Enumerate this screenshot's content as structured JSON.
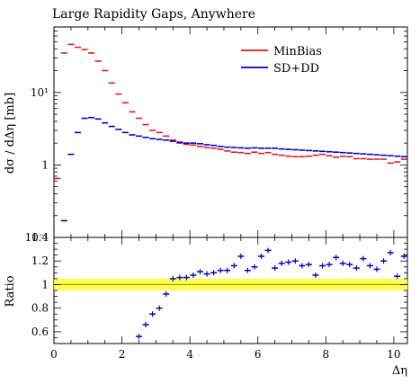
{
  "chart_data": [
    {
      "type": "scatter",
      "panel": "main",
      "title": "Large Rapidity Gaps, Anywhere",
      "xlabel": "",
      "ylabel": "dσ / dΔη [mb]",
      "yscale": "log",
      "ylim": [
        0.1,
        80
      ],
      "xlim": [
        0,
        10.4
      ],
      "yticks": [
        {
          "v": 0.1,
          "label": "10⁻¹"
        },
        {
          "v": 1,
          "label": "1"
        },
        {
          "v": 10,
          "label": "10¹"
        }
      ],
      "legend_position": "top-right",
      "series": [
        {
          "name": "MinBias",
          "color": "#e31a1c",
          "x": [
            0.1,
            0.3,
            0.5,
            0.7,
            0.9,
            1.1,
            1.3,
            1.5,
            1.7,
            1.9,
            2.1,
            2.3,
            2.5,
            2.7,
            2.9,
            3.1,
            3.3,
            3.5,
            3.7,
            3.9,
            4.1,
            4.3,
            4.5,
            4.7,
            4.9,
            5.1,
            5.3,
            5.5,
            5.7,
            5.9,
            6.1,
            6.3,
            6.5,
            6.7,
            6.9,
            7.1,
            7.3,
            7.5,
            7.7,
            7.9,
            8.1,
            8.3,
            8.5,
            8.7,
            8.9,
            9.1,
            9.3,
            9.5,
            9.7,
            9.9,
            10.1,
            10.3
          ],
          "y": [
            0.65,
            35,
            46,
            42,
            39,
            35,
            27,
            20,
            13.5,
            9.5,
            7.2,
            5.4,
            4.4,
            3.6,
            3.0,
            2.8,
            2.5,
            2.2,
            2.0,
            1.92,
            1.88,
            1.8,
            1.74,
            1.7,
            1.64,
            1.56,
            1.5,
            1.48,
            1.44,
            1.5,
            1.44,
            1.48,
            1.4,
            1.36,
            1.32,
            1.3,
            1.3,
            1.32,
            1.36,
            1.4,
            1.34,
            1.28,
            1.32,
            1.3,
            1.22,
            1.22,
            1.2,
            1.2,
            1.2,
            1.06,
            1.1,
            1.2
          ]
        },
        {
          "name": "SD+DD",
          "color": "#0000cc",
          "x": [
            0.1,
            0.3,
            0.5,
            0.7,
            0.9,
            1.1,
            1.3,
            1.5,
            1.7,
            1.9,
            2.1,
            2.3,
            2.5,
            2.7,
            2.9,
            3.1,
            3.3,
            3.5,
            3.7,
            3.9,
            4.1,
            4.3,
            4.5,
            4.7,
            4.9,
            5.1,
            5.3,
            5.5,
            5.7,
            5.9,
            6.1,
            6.3,
            6.5,
            6.7,
            6.9,
            7.1,
            7.3,
            7.5,
            7.7,
            7.9,
            8.1,
            8.3,
            8.5,
            8.7,
            8.9,
            9.1,
            9.3,
            9.5,
            9.7,
            9.9,
            10.1,
            10.3
          ],
          "y": [
            null,
            0.17,
            1.4,
            2.8,
            4.4,
            4.5,
            4.3,
            3.8,
            3.4,
            3.1,
            2.8,
            2.6,
            2.5,
            2.4,
            2.3,
            2.25,
            2.2,
            2.12,
            2.06,
            2.0,
            2.0,
            1.96,
            1.9,
            1.86,
            1.8,
            1.76,
            1.74,
            1.72,
            1.7,
            1.72,
            1.7,
            1.7,
            1.7,
            1.66,
            1.64,
            1.62,
            1.6,
            1.58,
            1.56,
            1.54,
            1.52,
            1.5,
            1.48,
            1.46,
            1.44,
            1.42,
            1.4,
            1.38,
            1.36,
            1.34,
            1.32,
            1.3
          ]
        }
      ]
    },
    {
      "type": "scatter",
      "panel": "ratio",
      "ylabel": "Ratio",
      "xlabel": "Δη",
      "xlim": [
        0,
        10.4
      ],
      "ylim": [
        0.5,
        1.4
      ],
      "yticks": [
        0.6,
        0.8,
        1,
        1.2,
        1.4
      ],
      "xticks": [
        0,
        2,
        4,
        6,
        8,
        10
      ],
      "reference_line": 1,
      "band_color": "#ffff33",
      "series": [
        {
          "name": "",
          "color": "#0000cc",
          "x": [
            2.5,
            2.7,
            2.9,
            3.1,
            3.3,
            3.5,
            3.7,
            3.9,
            4.1,
            4.3,
            4.5,
            4.7,
            4.9,
            5.1,
            5.3,
            5.5,
            5.7,
            5.9,
            6.1,
            6.3,
            6.5,
            6.7,
            6.9,
            7.1,
            7.3,
            7.5,
            7.7,
            7.9,
            8.1,
            8.3,
            8.5,
            8.7,
            8.9,
            9.1,
            9.3,
            9.5,
            9.7,
            9.9,
            10.1,
            10.3
          ],
          "y": [
            0.56,
            0.66,
            0.75,
            0.8,
            0.92,
            1.05,
            1.06,
            1.06,
            1.08,
            1.11,
            1.09,
            1.1,
            1.12,
            1.12,
            1.16,
            1.24,
            1.12,
            1.15,
            1.24,
            1.29,
            1.14,
            1.18,
            1.19,
            1.2,
            1.16,
            1.17,
            1.08,
            1.16,
            1.17,
            1.23,
            1.18,
            1.17,
            1.14,
            1.22,
            1.16,
            1.13,
            1.2,
            1.27,
            1.07,
            1.24
          ]
        }
      ]
    }
  ]
}
